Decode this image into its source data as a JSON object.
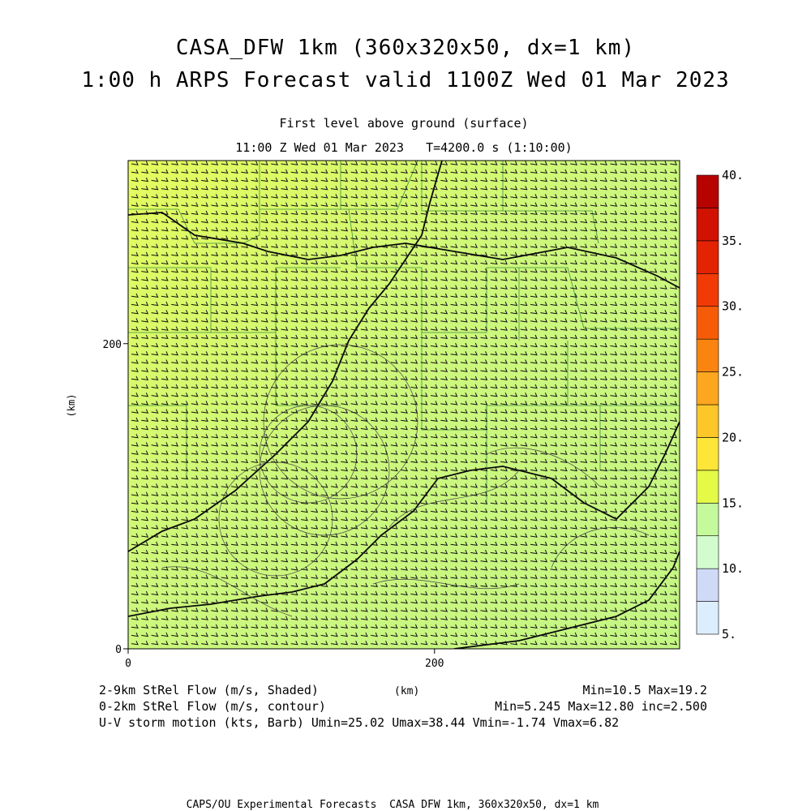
{
  "header": {
    "title_line1": "CASA_DFW 1km (360x320x50, dx=1 km)",
    "title_line2": "1:00 h ARPS Forecast valid 1100Z Wed 01 Mar 2023",
    "level": "First level above ground (surface)",
    "time_info": "11:00 Z Wed 01 Mar 2023   T=4200.0 s (1:10:00)"
  },
  "footer": {
    "line1_left": "2-9km StRel Flow (m/s, Shaded)",
    "line1_unit": "(km)",
    "line1_right": "Min=10.5 Max=19.2",
    "line2_left": "0-2km StRel Flow (m/s, contour)",
    "line2_right": "Min=5.245 Max=12.80 inc=2.500",
    "line3": "U-V storm motion (kts, Barb) Umin=25.02 Umax=38.44 Vmin=-1.74 Vmax=6.82",
    "credit": "CAPS/OU Experimental Forecasts  CASA DFW 1km, 360x320x50, dx=1 km"
  },
  "chart_data": {
    "type": "heatmap",
    "xlabel": "(km)",
    "ylabel": "(km)",
    "xlim": [
      0,
      360
    ],
    "ylim": [
      0,
      320
    ],
    "x_ticks": [
      "0",
      "200"
    ],
    "y_ticks": [
      "0",
      "200"
    ],
    "shaded_field": "2-9km StRel Flow (m/s, Shaded)",
    "shaded_min": 10.5,
    "shaded_max": 19.2,
    "colorbar": {
      "levels": [
        5,
        7.5,
        10,
        12.5,
        15,
        17.5,
        20,
        22.5,
        25,
        27.5,
        30,
        32.5,
        35,
        37.5,
        40
      ],
      "labels": [
        "5.",
        "10.",
        "15.",
        "20.",
        "25.",
        "30.",
        "35.",
        "40."
      ],
      "colors": [
        "#dcedfd",
        "#cfdaf7",
        "#d2fccd",
        "#c5fa9c",
        "#e4fa47",
        "#fde637",
        "#fdc72a",
        "#fca71f",
        "#f98410",
        "#f65c08",
        "#f13a06",
        "#e42204",
        "#d11101",
        "#b60300"
      ]
    },
    "contour_field": "0-2km StRel Flow (m/s, contour)",
    "contour_min": 5.245,
    "contour_max": 12.8,
    "contour_inc": 2.5,
    "barb_field": "U-V storm motion (kts, Barb)",
    "u_min": 25.02,
    "u_max": 38.44,
    "v_min": -1.74,
    "v_max": 6.82
  }
}
